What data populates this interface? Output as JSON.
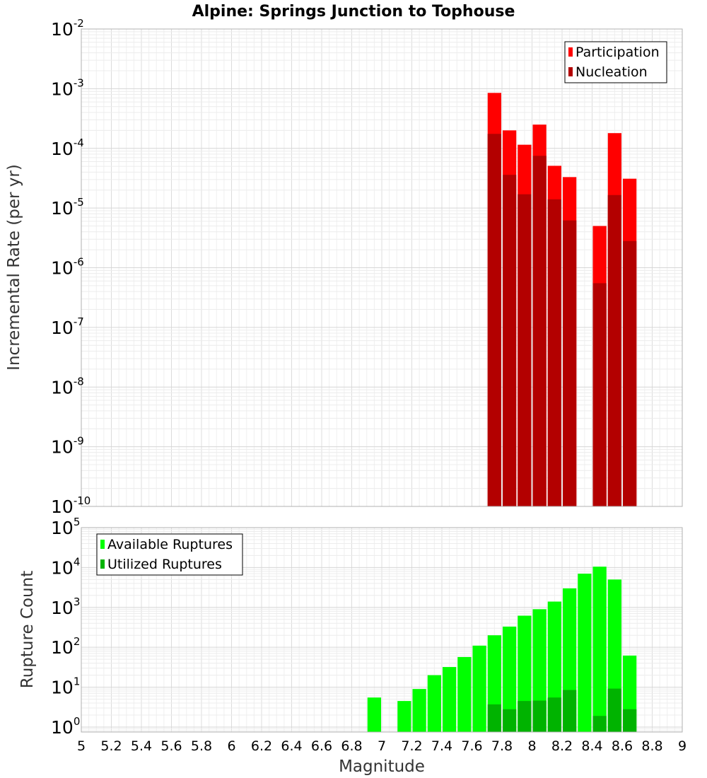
{
  "title": "Alpine: Springs Junction to Tophouse",
  "chart_data": [
    {
      "type": "bar",
      "panel": "rate",
      "ylabel": "Incremental Rate (per yr)",
      "yscale": "log",
      "ylim": [
        1e-10,
        0.01
      ],
      "xlim": [
        5,
        9
      ],
      "x_ticks": [
        "5",
        "5.2",
        "5.4",
        "5.6",
        "5.8",
        "6",
        "6.2",
        "6.4",
        "6.6",
        "6.8",
        "7",
        "7.2",
        "7.4",
        "7.6",
        "7.8",
        "8",
        "8.2",
        "8.4",
        "8.6",
        "8.8",
        "9"
      ],
      "y_ticks": [
        {
          "base": "10",
          "exp": "-10"
        },
        {
          "base": "10",
          "exp": "-9"
        },
        {
          "base": "10",
          "exp": "-8"
        },
        {
          "base": "10",
          "exp": "-7"
        },
        {
          "base": "10",
          "exp": "-6"
        },
        {
          "base": "10",
          "exp": "-5"
        },
        {
          "base": "10",
          "exp": "-4"
        },
        {
          "base": "10",
          "exp": "-3"
        },
        {
          "base": "10",
          "exp": "-2"
        }
      ],
      "legend_position": "top-right",
      "grid": true,
      "x": [
        7.75,
        7.85,
        7.95,
        8.05,
        8.15,
        8.25,
        8.45,
        8.55,
        8.65
      ],
      "series": [
        {
          "name": "Participation",
          "color": "#ff0000",
          "values": [
            0.00085,
            0.0002,
            0.000115,
            0.00025,
            5.1e-05,
            3.3e-05,
            5e-06,
            0.00018,
            3.1e-05
          ]
        },
        {
          "name": "Nucleation",
          "color": "#b30000",
          "values": [
            0.000175,
            3.6e-05,
            1.7e-05,
            7.5e-05,
            1.4e-05,
            6.2e-06,
            5.5e-07,
            1.65e-05,
            2.8e-06
          ]
        }
      ]
    },
    {
      "type": "bar",
      "panel": "count",
      "xlabel": "Magnitude",
      "ylabel": "Rupture Count",
      "yscale": "log",
      "ylim": [
        0.75,
        100000
      ],
      "xlim": [
        5,
        9
      ],
      "y_ticks": [
        {
          "base": "10",
          "exp": "0",
          "value": 1
        },
        {
          "base": "10",
          "exp": "1",
          "value": 10
        },
        {
          "base": "10",
          "exp": "2",
          "value": 100
        },
        {
          "base": "10",
          "exp": "3",
          "value": 1000
        },
        {
          "base": "10",
          "exp": "4",
          "value": 10000
        },
        {
          "base": "10",
          "exp": "5",
          "value": 100000
        }
      ],
      "legend_position": "top-left",
      "grid": true,
      "x": [
        6.95,
        7.15,
        7.25,
        7.35,
        7.45,
        7.55,
        7.65,
        7.75,
        7.85,
        7.95,
        8.05,
        8.15,
        8.25,
        8.35,
        8.45,
        8.55,
        8.65
      ],
      "series": [
        {
          "name": "Available Ruptures",
          "color": "#00ff00",
          "values": [
            5.5,
            4.5,
            9,
            20,
            32,
            57,
            110,
            200,
            330,
            620,
            900,
            1400,
            3000,
            7000,
            10500,
            5000,
            62
          ]
        },
        {
          "name": "Utilized Ruptures",
          "color": "#00b300",
          "values": [
            null,
            null,
            null,
            null,
            null,
            null,
            null,
            3.7,
            2.8,
            4.5,
            4.6,
            5.5,
            8.5,
            null,
            1.9,
            9.2,
            2.8
          ]
        }
      ]
    }
  ]
}
